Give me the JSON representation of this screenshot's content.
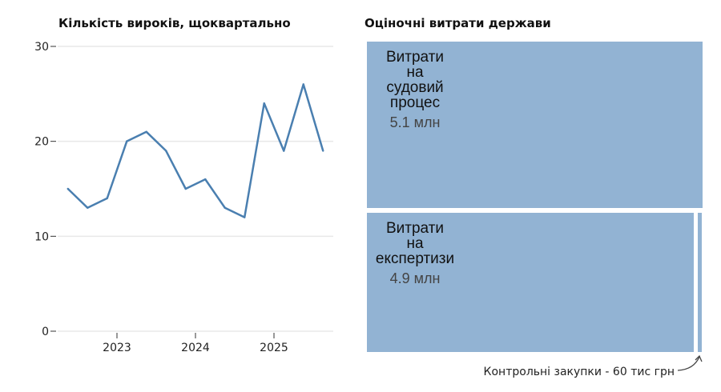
{
  "chart_data": [
    {
      "type": "line",
      "title": "Кількість вироків, щоквартально",
      "x": [
        "2022 Q2",
        "2022 Q3",
        "2022 Q4",
        "2023 Q1",
        "2023 Q2",
        "2023 Q3",
        "2023 Q4",
        "2024 Q1",
        "2024 Q2",
        "2024 Q3",
        "2024 Q4",
        "2025 Q1",
        "2025 Q2",
        "2025 Q3"
      ],
      "values": [
        15,
        13,
        14,
        20,
        21,
        19,
        15,
        16,
        13,
        12,
        24,
        19,
        26,
        19
      ],
      "ylim": [
        0,
        30
      ],
      "yticks": [
        "0",
        "10",
        "20",
        "30"
      ],
      "xticks": [
        "2023",
        "2024",
        "2025"
      ],
      "grid": true,
      "color": "#4a7fb0"
    },
    {
      "type": "treemap",
      "title": "Оціночні витрати держави",
      "items": [
        {
          "label_lines": [
            "Витрати",
            "на",
            "судовий",
            "процес"
          ],
          "value_label": "5.1 млн",
          "value": 5.1
        },
        {
          "label_lines": [
            "Витрати",
            "на",
            "експертизи"
          ],
          "value_label": "4.9 млн",
          "value": 4.9
        },
        {
          "label_lines": [],
          "value_label": "",
          "value": 0.06
        }
      ],
      "annotation": "Контрольні закупки - 60 тис грн",
      "color": "#92b3d3"
    }
  ]
}
